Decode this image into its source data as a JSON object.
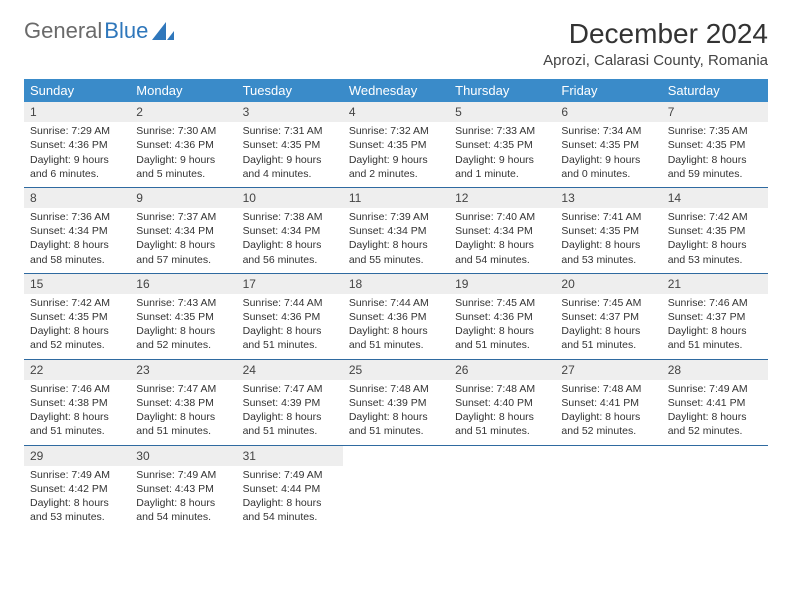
{
  "logo": {
    "text1": "General",
    "text2": "Blue"
  },
  "header": {
    "title": "December 2024",
    "location": "Aprozi, Calarasi County, Romania"
  },
  "calendar": {
    "type": "table",
    "accent_color": "#3a8bc9",
    "header_text_color": "#ffffff",
    "daynum_bg": "#eeeeee",
    "row_divider_color": "#2f6aa0",
    "body_fontsize": 10.5,
    "columns": [
      "Sunday",
      "Monday",
      "Tuesday",
      "Wednesday",
      "Thursday",
      "Friday",
      "Saturday"
    ],
    "weeks": [
      [
        {
          "n": "1",
          "sr": "7:29 AM",
          "ss": "4:36 PM",
          "dl": "9 hours and 6 minutes."
        },
        {
          "n": "2",
          "sr": "7:30 AM",
          "ss": "4:36 PM",
          "dl": "9 hours and 5 minutes."
        },
        {
          "n": "3",
          "sr": "7:31 AM",
          "ss": "4:35 PM",
          "dl": "9 hours and 4 minutes."
        },
        {
          "n": "4",
          "sr": "7:32 AM",
          "ss": "4:35 PM",
          "dl": "9 hours and 2 minutes."
        },
        {
          "n": "5",
          "sr": "7:33 AM",
          "ss": "4:35 PM",
          "dl": "9 hours and 1 minute."
        },
        {
          "n": "6",
          "sr": "7:34 AM",
          "ss": "4:35 PM",
          "dl": "9 hours and 0 minutes."
        },
        {
          "n": "7",
          "sr": "7:35 AM",
          "ss": "4:35 PM",
          "dl": "8 hours and 59 minutes."
        }
      ],
      [
        {
          "n": "8",
          "sr": "7:36 AM",
          "ss": "4:34 PM",
          "dl": "8 hours and 58 minutes."
        },
        {
          "n": "9",
          "sr": "7:37 AM",
          "ss": "4:34 PM",
          "dl": "8 hours and 57 minutes."
        },
        {
          "n": "10",
          "sr": "7:38 AM",
          "ss": "4:34 PM",
          "dl": "8 hours and 56 minutes."
        },
        {
          "n": "11",
          "sr": "7:39 AM",
          "ss": "4:34 PM",
          "dl": "8 hours and 55 minutes."
        },
        {
          "n": "12",
          "sr": "7:40 AM",
          "ss": "4:34 PM",
          "dl": "8 hours and 54 minutes."
        },
        {
          "n": "13",
          "sr": "7:41 AM",
          "ss": "4:35 PM",
          "dl": "8 hours and 53 minutes."
        },
        {
          "n": "14",
          "sr": "7:42 AM",
          "ss": "4:35 PM",
          "dl": "8 hours and 53 minutes."
        }
      ],
      [
        {
          "n": "15",
          "sr": "7:42 AM",
          "ss": "4:35 PM",
          "dl": "8 hours and 52 minutes."
        },
        {
          "n": "16",
          "sr": "7:43 AM",
          "ss": "4:35 PM",
          "dl": "8 hours and 52 minutes."
        },
        {
          "n": "17",
          "sr": "7:44 AM",
          "ss": "4:36 PM",
          "dl": "8 hours and 51 minutes."
        },
        {
          "n": "18",
          "sr": "7:44 AM",
          "ss": "4:36 PM",
          "dl": "8 hours and 51 minutes."
        },
        {
          "n": "19",
          "sr": "7:45 AM",
          "ss": "4:36 PM",
          "dl": "8 hours and 51 minutes."
        },
        {
          "n": "20",
          "sr": "7:45 AM",
          "ss": "4:37 PM",
          "dl": "8 hours and 51 minutes."
        },
        {
          "n": "21",
          "sr": "7:46 AM",
          "ss": "4:37 PM",
          "dl": "8 hours and 51 minutes."
        }
      ],
      [
        {
          "n": "22",
          "sr": "7:46 AM",
          "ss": "4:38 PM",
          "dl": "8 hours and 51 minutes."
        },
        {
          "n": "23",
          "sr": "7:47 AM",
          "ss": "4:38 PM",
          "dl": "8 hours and 51 minutes."
        },
        {
          "n": "24",
          "sr": "7:47 AM",
          "ss": "4:39 PM",
          "dl": "8 hours and 51 minutes."
        },
        {
          "n": "25",
          "sr": "7:48 AM",
          "ss": "4:39 PM",
          "dl": "8 hours and 51 minutes."
        },
        {
          "n": "26",
          "sr": "7:48 AM",
          "ss": "4:40 PM",
          "dl": "8 hours and 51 minutes."
        },
        {
          "n": "27",
          "sr": "7:48 AM",
          "ss": "4:41 PM",
          "dl": "8 hours and 52 minutes."
        },
        {
          "n": "28",
          "sr": "7:49 AM",
          "ss": "4:41 PM",
          "dl": "8 hours and 52 minutes."
        }
      ],
      [
        {
          "n": "29",
          "sr": "7:49 AM",
          "ss": "4:42 PM",
          "dl": "8 hours and 53 minutes."
        },
        {
          "n": "30",
          "sr": "7:49 AM",
          "ss": "4:43 PM",
          "dl": "8 hours and 54 minutes."
        },
        {
          "n": "31",
          "sr": "7:49 AM",
          "ss": "4:44 PM",
          "dl": "8 hours and 54 minutes."
        },
        null,
        null,
        null,
        null
      ]
    ],
    "labels": {
      "sunrise": "Sunrise:",
      "sunset": "Sunset:",
      "daylight": "Daylight:"
    }
  }
}
